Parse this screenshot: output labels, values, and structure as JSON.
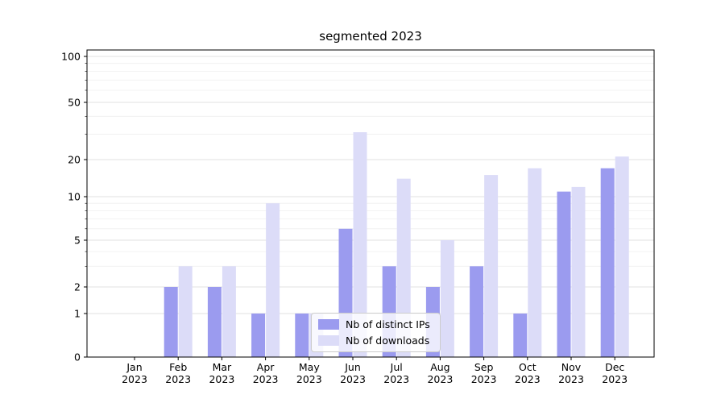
{
  "chart_data": {
    "type": "bar",
    "title": "segmented 2023",
    "x_months": [
      "Jan",
      "Feb",
      "Mar",
      "Apr",
      "May",
      "Jun",
      "Jul",
      "Aug",
      "Sep",
      "Oct",
      "Nov",
      "Dec"
    ],
    "x_year": "2023",
    "yticks": [
      0,
      1,
      2,
      5,
      10,
      20,
      50,
      100
    ],
    "minor_yticks": [
      3,
      4,
      6,
      7,
      8,
      9,
      30,
      40,
      60,
      70,
      80,
      90
    ],
    "scale": "symlog",
    "ylim": [
      0,
      100
    ],
    "grid": true,
    "legend_position": "lower center",
    "series": [
      {
        "name": "Nb of distinct IPs",
        "color": "#9b9bef",
        "values": [
          0,
          2,
          2,
          1,
          1,
          6,
          3,
          2,
          3,
          1,
          11,
          17
        ]
      },
      {
        "name": "Nb of downloads",
        "color": "#dcdcf8",
        "values": [
          0,
          3,
          3,
          9,
          1,
          31,
          14,
          5,
          15,
          17,
          12,
          21
        ]
      }
    ]
  }
}
